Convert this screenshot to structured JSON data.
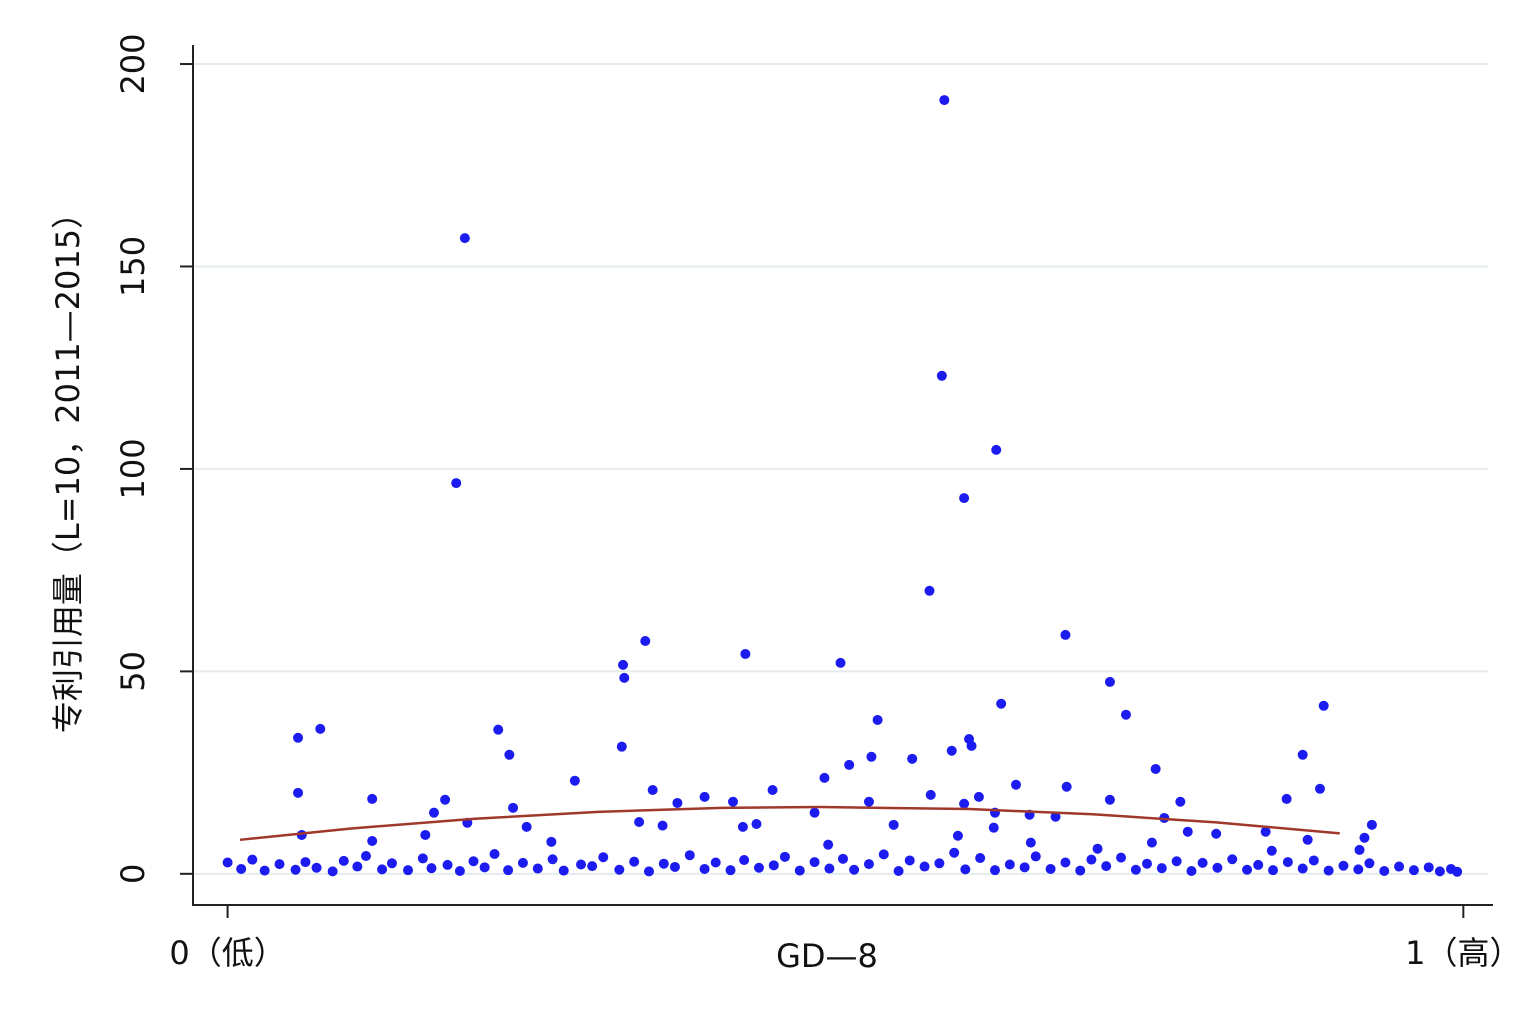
{
  "chart_data": {
    "type": "scatter",
    "x_label": "GD—8",
    "y_label": "专利引用量（L=10，2011—2015）",
    "xlim": [
      -0.028,
      1.024
    ],
    "ylim": [
      -7.7,
      204.7
    ],
    "xticks": [
      {
        "value": 0,
        "label": "0（低）"
      },
      {
        "value": 1,
        "label": "1（高）"
      }
    ],
    "yticks": [
      0,
      50,
      100,
      150,
      200
    ],
    "grid": true,
    "series": [
      {
        "color": "#1c1cf0",
        "x": [
          0.58,
          0.192,
          0.578,
          0.622,
          0.185,
          0.596,
          0.568,
          0.678,
          0.338,
          0.419,
          0.496,
          0.32,
          0.321,
          0.714,
          0.626,
          0.887,
          0.727,
          0.526,
          0.075,
          0.219,
          0.057,
          0.6,
          0.602,
          0.319,
          0.586,
          0.87,
          0.228,
          0.521,
          0.554,
          0.503,
          0.751,
          0.483,
          0.281,
          0.638,
          0.679,
          0.884,
          0.441,
          0.344,
          0.057,
          0.569,
          0.608,
          0.386,
          0.117,
          0.857,
          0.176,
          0.714,
          0.409,
          0.519,
          0.596,
          0.771,
          0.364,
          0.231,
          0.167,
          0.758,
          0.475,
          0.621,
          0.649,
          0.67,
          0.194,
          0.333,
          0.926,
          0.428,
          0.539,
          0.417,
          0.242,
          0.352,
          0.62,
          0.777,
          0.84,
          0.06,
          0.16,
          0.8,
          0.591,
          0.874,
          0.92,
          0.117,
          0.262,
          0.65,
          0.748,
          0.486,
          0.704,
          0.916,
          0.845,
          0.0,
          0.011,
          0.02,
          0.03,
          0.042,
          0.055,
          0.063,
          0.072,
          0.085,
          0.094,
          0.105,
          0.112,
          0.125,
          0.133,
          0.146,
          0.158,
          0.165,
          0.178,
          0.188,
          0.199,
          0.208,
          0.216,
          0.227,
          0.239,
          0.251,
          0.263,
          0.272,
          0.286,
          0.295,
          0.304,
          0.317,
          0.329,
          0.341,
          0.353,
          0.362,
          0.374,
          0.386,
          0.395,
          0.407,
          0.418,
          0.43,
          0.442,
          0.451,
          0.463,
          0.475,
          0.487,
          0.498,
          0.507,
          0.519,
          0.531,
          0.543,
          0.552,
          0.564,
          0.576,
          0.588,
          0.597,
          0.609,
          0.621,
          0.633,
          0.645,
          0.654,
          0.666,
          0.678,
          0.69,
          0.699,
          0.711,
          0.723,
          0.735,
          0.744,
          0.756,
          0.768,
          0.78,
          0.789,
          0.801,
          0.813,
          0.825,
          0.834,
          0.846,
          0.858,
          0.87,
          0.879,
          0.891,
          0.903,
          0.915,
          0.924,
          0.936,
          0.948,
          0.96,
          0.972,
          0.981,
          0.99,
          0.995
        ],
        "values": [
          191.1,
          157.0,
          123.0,
          104.7,
          96.5,
          92.8,
          69.9,
          59.0,
          57.5,
          54.3,
          52.1,
          51.6,
          48.4,
          47.4,
          42.0,
          41.5,
          39.3,
          38.0,
          35.8,
          35.6,
          33.6,
          33.3,
          31.6,
          31.4,
          30.4,
          29.4,
          29.4,
          28.9,
          28.4,
          26.9,
          25.9,
          23.7,
          23.0,
          22.0,
          21.5,
          21.0,
          20.7,
          20.7,
          20.0,
          19.5,
          19.0,
          19.0,
          18.5,
          18.5,
          18.3,
          18.3,
          17.8,
          17.8,
          17.3,
          17.8,
          17.5,
          16.3,
          15.1,
          13.8,
          15.1,
          15.1,
          14.6,
          14.1,
          12.6,
          12.8,
          12.1,
          12.3,
          12.1,
          11.6,
          11.6,
          11.9,
          11.4,
          10.4,
          10.4,
          9.6,
          9.6,
          9.9,
          9.4,
          8.4,
          8.9,
          8.1,
          7.9,
          7.7,
          7.7,
          7.2,
          6.2,
          5.9,
          5.7,
          2.8,
          1.2,
          3.5,
          0.8,
          2.4,
          1.0,
          2.9,
          1.5,
          0.6,
          3.2,
          1.8,
          4.4,
          1.1,
          2.6,
          0.9,
          3.8,
          1.4,
          2.2,
          0.7,
          3.1,
          1.6,
          4.9,
          0.9,
          2.7,
          1.3,
          3.6,
          0.8,
          2.3,
          1.9,
          4.1,
          1.0,
          3.0,
          0.6,
          2.5,
          1.7,
          4.6,
          1.2,
          2.8,
          0.9,
          3.4,
          1.5,
          2.1,
          4.2,
          0.8,
          2.9,
          1.3,
          3.7,
          1.0,
          2.4,
          4.8,
          0.7,
          3.3,
          1.8,
          2.6,
          5.2,
          1.1,
          3.9,
          0.9,
          2.3,
          1.6,
          4.3,
          1.2,
          2.8,
          0.8,
          3.5,
          1.9,
          4.0,
          1.0,
          2.5,
          1.4,
          3.1,
          0.7,
          2.7,
          1.5,
          3.6,
          1.0,
          2.2,
          0.9,
          2.9,
          1.3,
          3.3,
          0.8,
          2.0,
          1.1,
          2.6,
          0.7,
          1.8,
          0.9,
          1.6,
          0.6,
          1.2,
          0.5
        ]
      },
      {
        "color": "#a0382c",
        "kind": "line",
        "x": [
          0.01,
          0.1,
          0.2,
          0.3,
          0.4,
          0.48,
          0.6,
          0.7,
          0.8,
          0.9
        ],
        "values": [
          8.4,
          11.2,
          13.6,
          15.3,
          16.3,
          16.5,
          16.0,
          14.7,
          12.7,
          10.0
        ]
      }
    ]
  }
}
